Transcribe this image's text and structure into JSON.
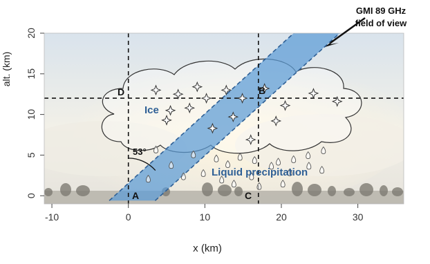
{
  "axes": {
    "xlabel": "x (km)",
    "ylabel": "alt. (km)",
    "x_ticks": [
      "-10",
      "0",
      "10",
      "20",
      "30"
    ],
    "y_ticks": [
      "0",
      "5",
      "10",
      "15",
      "20"
    ],
    "x_tick_values": [
      -10,
      0,
      10,
      20,
      30
    ],
    "y_tick_values": [
      0,
      5,
      10,
      15,
      20
    ],
    "xlim": [
      -11,
      36
    ],
    "ylim": [
      -1,
      20
    ],
    "grid": false
  },
  "annotations": {
    "fov_label_line1": "GMI 89 GHz",
    "fov_label_line2": "field of view",
    "angle_label": "53°",
    "ice_label": "Ice",
    "liquid_label": "Liquid precipitation",
    "point_a": "A",
    "point_b": "B",
    "point_c": "C",
    "point_d": "D"
  },
  "reference_lines": {
    "vertical_x_km": [
      0,
      17
    ],
    "horizontal_alt_km": 12
  },
  "beam": {
    "angle_deg": 53,
    "ground_left_x_km": -2.5,
    "ground_right_x_km": 3.5
  },
  "colors": {
    "beam_fill": "#5b9bd5",
    "beam_edge": "#2e5f95",
    "label_blue": "#2e5f95",
    "cloud_line": "#333333",
    "sky_top": "#dde6ee",
    "sky_glow": "#fbf3dc"
  },
  "symbols": {
    "ice_crystal": "four-point-star",
    "raindrop": "teardrop"
  }
}
